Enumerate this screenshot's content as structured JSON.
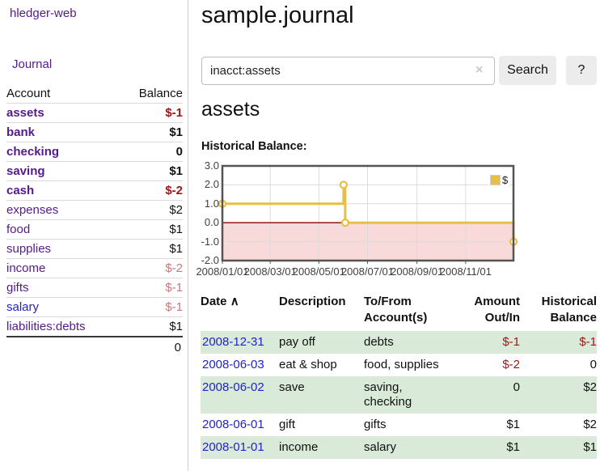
{
  "app": {
    "brand": "hledger-web",
    "nav_journal": "Journal"
  },
  "colors": {
    "purple_link": "#551A8B",
    "blue_link": "#2222CC",
    "negative_red": "#A11616",
    "dim_negative": "#C87878",
    "row_stripe_green": "#DAEAD9",
    "chart_gold": "#E9BE45",
    "chart_negative_fill": "#F9DADA",
    "chart_zero_line": "#8B0000"
  },
  "header": {
    "title": "sample.journal"
  },
  "search": {
    "value": "inacct:assets",
    "clear_icon": "×",
    "search_label": "Search",
    "help_label": "?"
  },
  "sidebar": {
    "header_account": "Account",
    "header_balance": "Balance",
    "accounts": [
      {
        "name": "assets",
        "indent": 1,
        "bold": true,
        "balance": "$-1",
        "balance_style": "neg"
      },
      {
        "name": "bank",
        "indent": 2,
        "bold": true,
        "balance": "$1",
        "balance_style": ""
      },
      {
        "name": "checking",
        "indent": 3,
        "bold": true,
        "balance": "0",
        "balance_style": ""
      },
      {
        "name": "saving",
        "indent": 3,
        "bold": true,
        "balance": "$1",
        "balance_style": ""
      },
      {
        "name": "cash",
        "indent": 2,
        "bold": true,
        "balance": "$-2",
        "balance_style": "neg"
      },
      {
        "name": "expenses",
        "indent": 1,
        "bold": false,
        "balance": "$2",
        "balance_style": ""
      },
      {
        "name": "food",
        "indent": 2,
        "bold": false,
        "balance": "$1",
        "balance_style": ""
      },
      {
        "name": "supplies",
        "indent": 2,
        "bold": false,
        "balance": "$1",
        "balance_style": ""
      },
      {
        "name": "income",
        "indent": 1,
        "bold": false,
        "balance": "$-2",
        "balance_style": "dim"
      },
      {
        "name": "gifts",
        "indent": 2,
        "bold": false,
        "balance": "$-1",
        "balance_style": "dim"
      },
      {
        "name": "salary",
        "indent": 2,
        "bold": false,
        "balance": "$-1",
        "balance_style": "dim",
        "link_color": "blue"
      },
      {
        "name": "liabilities:debts",
        "indent": 1,
        "bold": false,
        "balance": "$1",
        "balance_style": ""
      }
    ],
    "total": "0"
  },
  "account_view": {
    "heading": "assets",
    "chart_title": "Historical Balance:"
  },
  "chart_data": {
    "type": "line",
    "step": true,
    "title": "Historical Balance:",
    "legend": "$",
    "legend_position": "top-right",
    "grid": true,
    "ylim": [
      -2,
      3
    ],
    "yticks": [
      "3.0",
      "2.0",
      "1.0",
      "0.0",
      "-1.0",
      "-2.0"
    ],
    "xticks": [
      "2008/01/01",
      "2008/03/01",
      "2008/05/01",
      "2008/07/01",
      "2008/09/01",
      "2008/11/01"
    ],
    "x_range": [
      "2008/01/01",
      "2008/12/31"
    ],
    "series": [
      {
        "name": "$",
        "color": "#E9BE45",
        "points": [
          [
            "2008/01/01",
            1
          ],
          [
            "2008/06/01",
            2
          ],
          [
            "2008/06/03",
            0
          ],
          [
            "2008/12/31",
            -1
          ]
        ]
      }
    ],
    "negative_region_fill": "#F9DADA",
    "zero_line_color": "#8B0000"
  },
  "register": {
    "col_date": "Date",
    "sort_indicator": "∧",
    "col_description": "Description",
    "col_accounts_line1": "To/From",
    "col_accounts_line2": "Account(s)",
    "col_amount_line1": "Amount",
    "col_amount_line2": "Out/In",
    "col_balance_line1": "Historical",
    "col_balance_line2": "Balance",
    "rows": [
      {
        "date": "2008-12-31",
        "description": "pay off",
        "accounts": "debts",
        "amount": "$-1",
        "amount_style": "neg",
        "balance": "$-1",
        "balance_style": "neg"
      },
      {
        "date": "2008-06-03",
        "description": "eat & shop",
        "accounts": "food, supplies",
        "amount": "$-2",
        "amount_style": "neg",
        "balance": "0",
        "balance_style": ""
      },
      {
        "date": "2008-06-02",
        "description": "save",
        "accounts": "saving, checking",
        "amount": "0",
        "amount_style": "",
        "balance": "$2",
        "balance_style": ""
      },
      {
        "date": "2008-06-01",
        "description": "gift",
        "accounts": "gifts",
        "amount": "$1",
        "amount_style": "",
        "balance": "$2",
        "balance_style": ""
      },
      {
        "date": "2008-01-01",
        "description": "income",
        "accounts": "salary",
        "amount": "$1",
        "amount_style": "",
        "balance": "$1",
        "balance_style": ""
      }
    ]
  }
}
